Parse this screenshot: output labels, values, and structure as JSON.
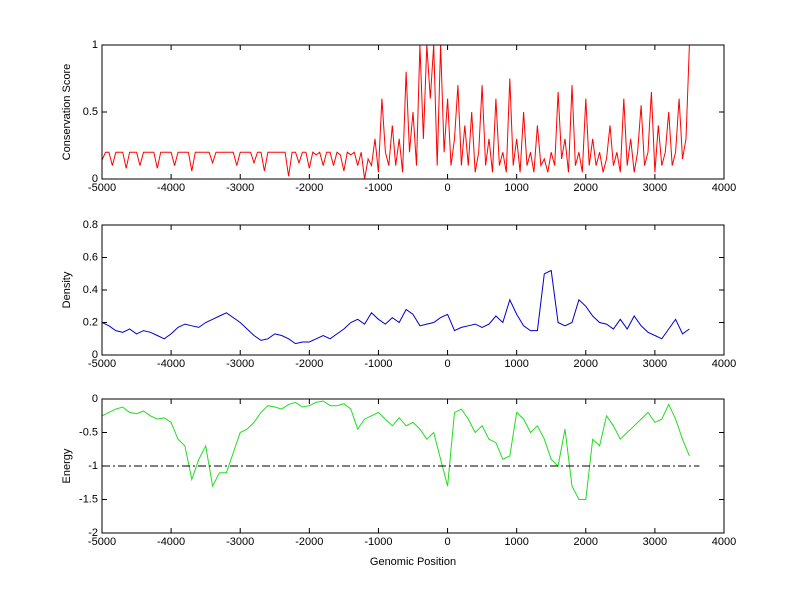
{
  "chart_data": [
    {
      "type": "line",
      "ylabel": "Conservation Score",
      "x": [
        -5000,
        -4950,
        -4900,
        -4850,
        -4800,
        -4750,
        -4700,
        -4650,
        -4600,
        -4550,
        -4500,
        -4450,
        -4400,
        -4350,
        -4300,
        -4250,
        -4200,
        -4150,
        -4100,
        -4050,
        -4000,
        -3950,
        -3900,
        -3850,
        -3800,
        -3750,
        -3700,
        -3650,
        -3600,
        -3550,
        -3500,
        -3450,
        -3400,
        -3350,
        -3300,
        -3250,
        -3200,
        -3150,
        -3100,
        -3050,
        -3000,
        -2950,
        -2900,
        -2850,
        -2800,
        -2750,
        -2700,
        -2650,
        -2600,
        -2550,
        -2500,
        -2450,
        -2400,
        -2350,
        -2300,
        -2250,
        -2200,
        -2150,
        -2100,
        -2050,
        -2000,
        -1950,
        -1900,
        -1850,
        -1800,
        -1750,
        -1700,
        -1650,
        -1600,
        -1550,
        -1500,
        -1450,
        -1400,
        -1350,
        -1300,
        -1250,
        -1200,
        -1150,
        -1100,
        -1050,
        -1000,
        -950,
        -900,
        -850,
        -800,
        -750,
        -700,
        -650,
        -600,
        -550,
        -500,
        -450,
        -400,
        -350,
        -300,
        -250,
        -200,
        -150,
        -100,
        -50,
        0,
        50,
        100,
        150,
        200,
        250,
        300,
        350,
        400,
        450,
        500,
        550,
        600,
        650,
        700,
        750,
        800,
        850,
        900,
        950,
        1000,
        1050,
        1100,
        1150,
        1200,
        1250,
        1300,
        1350,
        1400,
        1450,
        1500,
        1550,
        1600,
        1650,
        1700,
        1750,
        1800,
        1850,
        1900,
        1950,
        2000,
        2050,
        2100,
        2150,
        2200,
        2250,
        2300,
        2350,
        2400,
        2450,
        2500,
        2550,
        2600,
        2650,
        2700,
        2750,
        2800,
        2850,
        2900,
        2950,
        3000,
        3050,
        3100,
        3150,
        3200,
        3250,
        3300,
        3350,
        3400,
        3450,
        3500
      ],
      "series": [
        {
          "color": "#ff0000",
          "values": [
            0.14,
            0.2,
            0.2,
            0.1,
            0.2,
            0.2,
            0.2,
            0.08,
            0.2,
            0.2,
            0.2,
            0.1,
            0.2,
            0.2,
            0.2,
            0.2,
            0.08,
            0.2,
            0.2,
            0.2,
            0.2,
            0.1,
            0.2,
            0.2,
            0.2,
            0.2,
            0.06,
            0.2,
            0.2,
            0.2,
            0.2,
            0.2,
            0.12,
            0.2,
            0.2,
            0.2,
            0.2,
            0.2,
            0.2,
            0.1,
            0.2,
            0.2,
            0.2,
            0.2,
            0.12,
            0.2,
            0.2,
            0.06,
            0.2,
            0.2,
            0.2,
            0.2,
            0.2,
            0.2,
            0.02,
            0.2,
            0.2,
            0.12,
            0.2,
            0.2,
            0.08,
            0.2,
            0.18,
            0.2,
            0.1,
            0.2,
            0.2,
            0.1,
            0.2,
            0.18,
            0.06,
            0.2,
            0.18,
            0.2,
            0.1,
            0.2,
            0,
            0.15,
            0.1,
            0.3,
            0.05,
            0.6,
            0.2,
            0.1,
            0.4,
            0.1,
            0.3,
            0.05,
            0.8,
            0.2,
            0.5,
            0.1,
            1,
            0.3,
            1,
            0.6,
            1,
            0.1,
            1,
            0.2,
            0.6,
            0.1,
            0.3,
            0.7,
            0.1,
            0.4,
            0.1,
            0.5,
            0.05,
            0.2,
            0.7,
            0.1,
            0.3,
            0.05,
            0.6,
            0.1,
            0.2,
            0.05,
            0.75,
            0.1,
            0.3,
            0.05,
            0.5,
            0.1,
            0.2,
            0.05,
            0.4,
            0.1,
            0.15,
            0.05,
            0.2,
            0.1,
            0.65,
            0.15,
            0.3,
            0.05,
            0.7,
            0.1,
            0.2,
            0.05,
            0.6,
            0.1,
            0.3,
            0.1,
            0.2,
            0.05,
            0.15,
            0.4,
            0.1,
            0.2,
            0.05,
            0.6,
            0.1,
            0.3,
            0.05,
            0.2,
            0.55,
            0.1,
            0.2,
            0.65,
            0.05,
            0.4,
            0.1,
            0.2,
            0.5,
            0.1,
            0.2,
            0.6,
            0.15,
            0.3,
            1
          ]
        }
      ],
      "xlim": [
        -5000,
        4000
      ],
      "xticks": [
        -5000,
        -4000,
        -3000,
        -2000,
        -1000,
        0,
        1000,
        2000,
        3000,
        4000
      ],
      "ylim": [
        0,
        1
      ],
      "yticks": [
        0,
        0.5,
        1
      ],
      "grid": false
    },
    {
      "type": "line",
      "ylabel": "Density",
      "x": [
        -5000,
        -4900,
        -4800,
        -4700,
        -4600,
        -4500,
        -4400,
        -4300,
        -4200,
        -4100,
        -4000,
        -3900,
        -3800,
        -3700,
        -3600,
        -3500,
        -3400,
        -3300,
        -3200,
        -3100,
        -3000,
        -2900,
        -2800,
        -2700,
        -2600,
        -2500,
        -2400,
        -2300,
        -2200,
        -2100,
        -2000,
        -1900,
        -1800,
        -1700,
        -1600,
        -1500,
        -1400,
        -1300,
        -1200,
        -1100,
        -1000,
        -900,
        -800,
        -700,
        -600,
        -500,
        -400,
        -300,
        -200,
        -100,
        0,
        100,
        200,
        300,
        400,
        500,
        600,
        700,
        800,
        900,
        1000,
        1100,
        1200,
        1300,
        1400,
        1500,
        1600,
        1700,
        1800,
        1900,
        2000,
        2100,
        2200,
        2300,
        2400,
        2500,
        2600,
        2700,
        2800,
        2900,
        3000,
        3100,
        3200,
        3300,
        3400,
        3500
      ],
      "series": [
        {
          "color": "#0000cc",
          "values": [
            0.2,
            0.18,
            0.15,
            0.14,
            0.16,
            0.13,
            0.15,
            0.14,
            0.12,
            0.1,
            0.13,
            0.17,
            0.19,
            0.18,
            0.17,
            0.2,
            0.22,
            0.24,
            0.26,
            0.23,
            0.2,
            0.16,
            0.12,
            0.09,
            0.1,
            0.13,
            0.12,
            0.1,
            0.07,
            0.08,
            0.08,
            0.1,
            0.12,
            0.1,
            0.13,
            0.16,
            0.2,
            0.22,
            0.19,
            0.26,
            0.22,
            0.19,
            0.23,
            0.2,
            0.28,
            0.25,
            0.18,
            0.19,
            0.2,
            0.23,
            0.25,
            0.15,
            0.17,
            0.18,
            0.19,
            0.17,
            0.19,
            0.24,
            0.2,
            0.34,
            0.25,
            0.18,
            0.15,
            0.15,
            0.5,
            0.52,
            0.2,
            0.18,
            0.2,
            0.34,
            0.3,
            0.24,
            0.2,
            0.19,
            0.16,
            0.22,
            0.16,
            0.24,
            0.18,
            0.14,
            0.12,
            0.1,
            0.16,
            0.22,
            0.13,
            0.16
          ]
        }
      ],
      "xlim": [
        -5000,
        4000
      ],
      "xticks": [
        -5000,
        -4000,
        -3000,
        -2000,
        -1000,
        0,
        1000,
        2000,
        3000,
        4000
      ],
      "ylim": [
        0,
        0.8
      ],
      "yticks": [
        0,
        0.2,
        0.4,
        0.6,
        0.8
      ],
      "grid": false
    },
    {
      "type": "line",
      "ylabel": "Energy",
      "xlabel": "Genomic Position",
      "x": [
        -5000,
        -4900,
        -4800,
        -4700,
        -4600,
        -4500,
        -4400,
        -4300,
        -4200,
        -4100,
        -4000,
        -3900,
        -3800,
        -3700,
        -3600,
        -3500,
        -3400,
        -3300,
        -3200,
        -3100,
        -3000,
        -2900,
        -2800,
        -2700,
        -2600,
        -2500,
        -2400,
        -2300,
        -2200,
        -2100,
        -2000,
        -1900,
        -1800,
        -1700,
        -1600,
        -1500,
        -1400,
        -1300,
        -1200,
        -1100,
        -1000,
        -900,
        -800,
        -700,
        -600,
        -500,
        -400,
        -300,
        -200,
        -100,
        0,
        100,
        200,
        300,
        400,
        500,
        600,
        700,
        800,
        900,
        1000,
        1100,
        1200,
        1300,
        1400,
        1500,
        1600,
        1700,
        1800,
        1900,
        2000,
        2100,
        2200,
        2300,
        2400,
        2500,
        2600,
        2700,
        2800,
        2900,
        3000,
        3100,
        3200,
        3300,
        3400,
        3500
      ],
      "series": [
        {
          "color": "#22dd22",
          "values": [
            -0.25,
            -0.2,
            -0.15,
            -0.12,
            -0.2,
            -0.22,
            -0.18,
            -0.25,
            -0.3,
            -0.28,
            -0.35,
            -0.6,
            -0.7,
            -1.2,
            -0.9,
            -0.7,
            -1.3,
            -1.1,
            -1.1,
            -0.8,
            -0.5,
            -0.45,
            -0.35,
            -0.2,
            -0.1,
            -0.12,
            -0.15,
            -0.08,
            -0.05,
            -0.12,
            -0.1,
            -0.05,
            -0.03,
            -0.1,
            -0.1,
            -0.07,
            -0.15,
            -0.45,
            -0.3,
            -0.25,
            -0.2,
            -0.3,
            -0.4,
            -0.28,
            -0.4,
            -0.35,
            -0.45,
            -0.6,
            -0.5,
            -0.9,
            -1.3,
            -0.2,
            -0.15,
            -0.3,
            -0.5,
            -0.4,
            -0.6,
            -0.65,
            -0.9,
            -0.85,
            -0.2,
            -0.3,
            -0.5,
            -0.4,
            -0.6,
            -0.9,
            -1,
            -0.45,
            -1.3,
            -1.5,
            -1.5,
            -0.6,
            -0.7,
            -0.25,
            -0.4,
            -0.6,
            -0.5,
            -0.4,
            -0.3,
            -0.2,
            -0.35,
            -0.3,
            -0.08,
            -0.3,
            -0.6,
            -0.85
          ]
        }
      ],
      "hline": -1,
      "hline_style": "dash-dot",
      "xlim": [
        -5000,
        4000
      ],
      "xticks": [
        -5000,
        -4000,
        -3000,
        -2000,
        -1000,
        0,
        1000,
        2000,
        3000,
        4000
      ],
      "ylim": [
        -2,
        0
      ],
      "yticks": [
        -2,
        -1.5,
        -1,
        -0.5,
        0
      ],
      "grid": false
    }
  ]
}
